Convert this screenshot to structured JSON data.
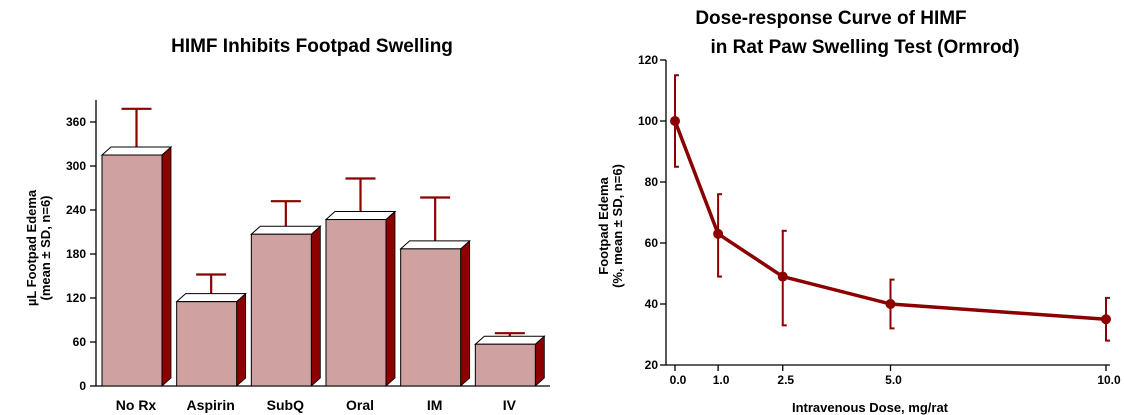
{
  "chart_data": [
    {
      "type": "bar",
      "title": "HIMF Inhibits Footpad Swelling",
      "ylabel_line1": "µL Footpad Edema",
      "ylabel_line2": "(mean ± SD, n=6)",
      "categories": [
        "No Rx",
        "Aspirin",
        "SubQ",
        "Oral",
        "IM",
        "IV"
      ],
      "values": [
        315,
        115,
        207,
        227,
        187,
        57
      ],
      "error_upper": [
        378,
        152,
        252,
        283,
        257,
        72
      ],
      "ylim": [
        0,
        390
      ],
      "yticks": [
        0,
        60,
        120,
        180,
        240,
        300,
        360
      ],
      "colors": {
        "bar_face": "#cfa1a1",
        "bar_side": "#8b0000",
        "bar_top": "#ffffff",
        "error": "#8b0000"
      }
    },
    {
      "type": "line",
      "title_line1": "Dose-response Curve of HIMF",
      "title_line2": "in Rat Paw Swelling Test (Ormrod)",
      "xlabel": "Intravenous Dose, mg/rat",
      "ylabel_line1": "Footpad Edema",
      "ylabel_line2": "(%, mean ± SD, n=6)",
      "xtick_labels": [
        "0.0",
        "1.0",
        "2.5",
        "5.0",
        "10.0"
      ],
      "x": [
        0.0,
        1.0,
        2.5,
        5.0,
        10.0
      ],
      "y": [
        100,
        63,
        49,
        40,
        35
      ],
      "error_low": [
        85,
        49,
        33,
        32,
        28
      ],
      "error_high": [
        115,
        76,
        64,
        48,
        42
      ],
      "ylim": [
        20,
        120
      ],
      "yticks": [
        20,
        40,
        60,
        80,
        100,
        120
      ],
      "colors": {
        "line": "#8b0000"
      }
    }
  ]
}
